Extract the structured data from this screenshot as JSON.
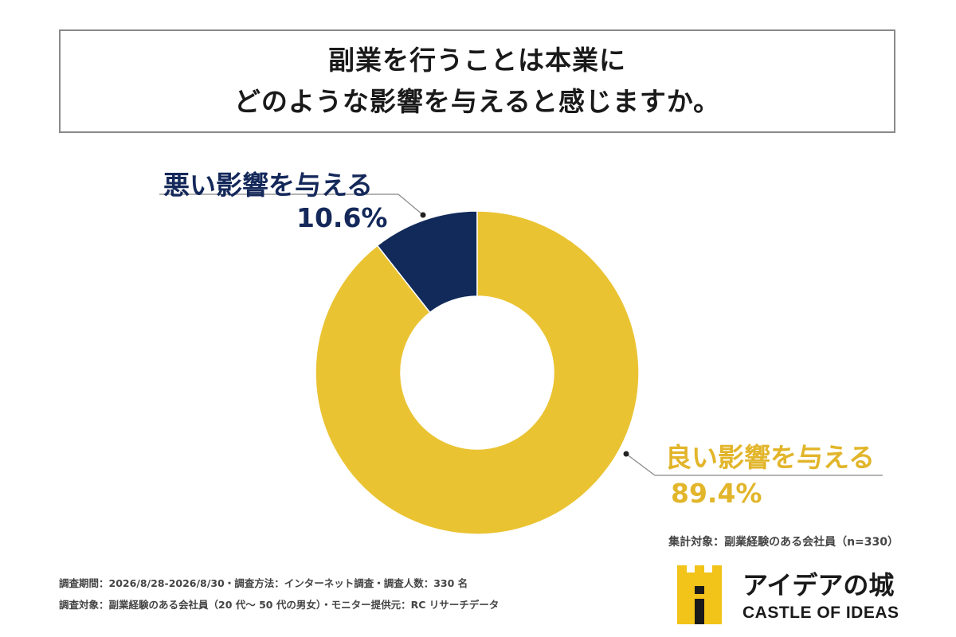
{
  "title": {
    "line1": "副業を行うことは本業に",
    "line2": "どのような影響を与えると感じますか。"
  },
  "colors": {
    "good": "#EAC332",
    "bad": "#122A5A",
    "good_text": "#E2B52A",
    "bad_text": "#14285A"
  },
  "chart_data": {
    "type": "pie",
    "donut": true,
    "slices": [
      {
        "name": "悪い影響を与える",
        "value": 10.6,
        "label": "10.6%",
        "color": "#122A5A"
      },
      {
        "name": "良い影響を与える",
        "value": 89.4,
        "label": "89.4%",
        "color": "#EAC332"
      }
    ],
    "start": "12 o'clock",
    "direction": "counter-clockwise",
    "legend": "none"
  },
  "note_right": "集計対象：副業経験のある会社員（n=330）",
  "footer": {
    "line1": "調査期間：2026/8/28-2026/8/30・調査方法：インターネット調査・調査人数：330 名",
    "line2": "調査対象：副業経験のある会社員（20 代〜 50 代の男女）・モニター提供元：RC リサーチデータ"
  },
  "logo": {
    "name_ja": "アイデアの城",
    "name_en": "CASTLE OF IDEAS",
    "icon": "castle-icon"
  }
}
